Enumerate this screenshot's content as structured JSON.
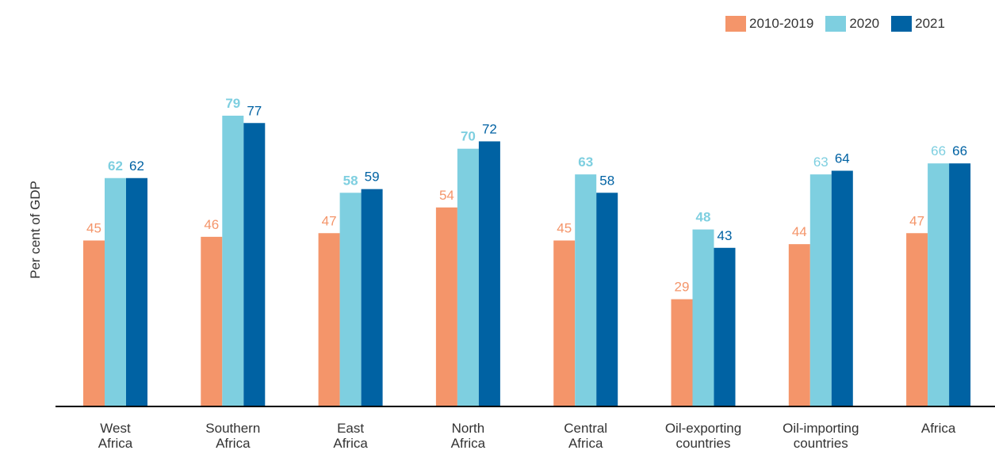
{
  "chart_data": {
    "type": "bar",
    "ylabel": "Per cent of GDP",
    "xlabel": "",
    "title": "",
    "ylim": [
      0,
      90
    ],
    "legend_position": "top-right",
    "grid": false,
    "categories": [
      [
        "West",
        "Africa"
      ],
      [
        "Southern",
        "Africa"
      ],
      [
        "East",
        "Africa"
      ],
      [
        "North",
        "Africa"
      ],
      [
        "Central",
        "Africa"
      ],
      [
        "Oil-exporting",
        "countries"
      ],
      [
        "Oil-importing",
        "countries"
      ],
      [
        "Africa"
      ]
    ],
    "series": [
      {
        "name": "2010-2019",
        "color": "#F4956A",
        "label_color": "#F4956A",
        "bold": false,
        "values": [
          45,
          46,
          47,
          54,
          45,
          29,
          44,
          47
        ]
      },
      {
        "name": "2020",
        "color": "#7ECFE0",
        "label_color": "#7ECFE0",
        "values": [
          62,
          79,
          58,
          70,
          63,
          48,
          63,
          66
        ],
        "bold_flags": [
          true,
          true,
          true,
          true,
          true,
          true,
          false,
          false
        ]
      },
      {
        "name": "2021",
        "color": "#0062A3",
        "label_color": "#0062A3",
        "bold": false,
        "values": [
          62,
          77,
          59,
          72,
          58,
          43,
          64,
          66
        ]
      }
    ]
  }
}
